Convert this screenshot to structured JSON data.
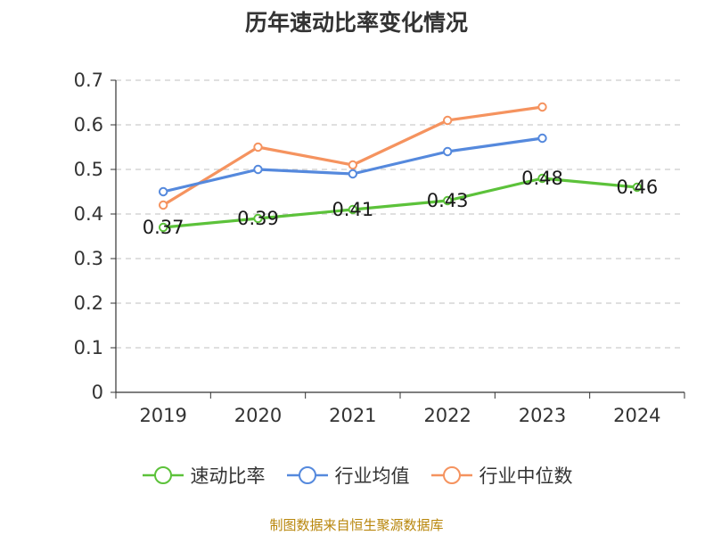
{
  "chart_data": {
    "type": "line",
    "title": "历年速动比率变化情况",
    "categories": [
      "2019",
      "2020",
      "2021",
      "2022",
      "2023",
      "2024"
    ],
    "ylim": [
      0,
      0.7
    ],
    "yticks": [
      "0",
      "0.1",
      "0.2",
      "0.3",
      "0.4",
      "0.5",
      "0.6",
      "0.7"
    ],
    "grid": true,
    "legend_position": "bottom",
    "series": [
      {
        "name": "速动比率",
        "color": "#5cc23a",
        "values": [
          0.37,
          0.39,
          0.41,
          0.43,
          0.48,
          0.46
        ],
        "labels": [
          "0.37",
          "0.39",
          "0.41",
          "0.43",
          "0.48",
          "0.46"
        ],
        "show_labels": true
      },
      {
        "name": "行业均值",
        "color": "#5589dd",
        "values": [
          0.45,
          0.5,
          0.49,
          0.54,
          0.57,
          null
        ],
        "show_labels": false
      },
      {
        "name": "行业中位数",
        "color": "#f5935f",
        "values": [
          0.42,
          0.55,
          0.51,
          0.61,
          0.64,
          null
        ],
        "show_labels": false
      }
    ],
    "source": "制图数据来自恒生聚源数据库"
  }
}
